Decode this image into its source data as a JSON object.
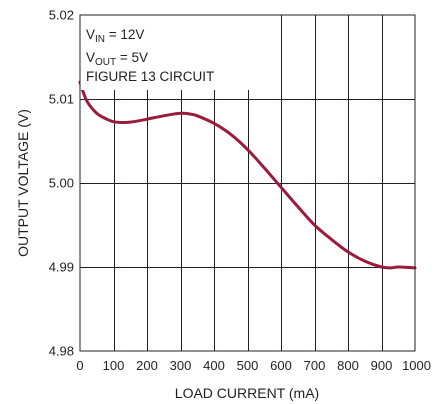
{
  "chart_data": {
    "type": "line",
    "title": "",
    "xlabel": "LOAD CURRENT (mA)",
    "ylabel": "OUTPUT VOLTAGE (V)",
    "xlim": [
      0,
      1000
    ],
    "ylim": [
      4.98,
      5.02
    ],
    "xticks": [
      0,
      100,
      200,
      300,
      400,
      500,
      600,
      700,
      800,
      900,
      1000
    ],
    "xtick_labels": [
      "0",
      "100",
      "200",
      "300",
      "400",
      "500",
      "600",
      "700",
      "800",
      "900",
      "1000"
    ],
    "yticks": [
      4.98,
      4.99,
      5.0,
      5.01,
      5.02
    ],
    "ytick_labels": [
      "4.98",
      "4.99",
      "5.00",
      "5.01",
      "5.02"
    ],
    "grid": true,
    "legend": "none",
    "annotations": {
      "vin": {
        "main": "V",
        "sub": "IN",
        "rest": " = 12V"
      },
      "vout": {
        "main": "V",
        "sub": "OUT",
        "rest": " = 5V"
      },
      "circuit": "FIGURE 13 CIRCUIT"
    },
    "series": [
      {
        "color": "#9b1b3b",
        "x": [
          0,
          20,
          50,
          80,
          100,
          130,
          160,
          200,
          250,
          300,
          330,
          350,
          400,
          450,
          500,
          550,
          600,
          650,
          700,
          750,
          800,
          850,
          900,
          930,
          950,
          1000
        ],
        "y": [
          5.012,
          5.0098,
          5.0083,
          5.0076,
          5.0073,
          5.0072,
          5.0073,
          5.0076,
          5.008,
          5.0083,
          5.0082,
          5.008,
          5.0071,
          5.0058,
          5.004,
          5.0018,
          4.9995,
          4.9972,
          4.995,
          4.9933,
          4.9918,
          4.9907,
          4.99,
          4.9899,
          4.99,
          4.9899
        ]
      }
    ]
  }
}
